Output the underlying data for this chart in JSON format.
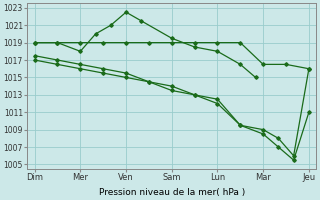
{
  "xlabel": "Pression niveau de la mer( hPa )",
  "ylim": [
    1005,
    1023
  ],
  "yticks": [
    1005,
    1007,
    1009,
    1011,
    1013,
    1015,
    1017,
    1019,
    1021,
    1023
  ],
  "x_labels": [
    "Dim",
    "Mer",
    "Ven",
    "Sam",
    "Lun",
    "Mar",
    "Jeu"
  ],
  "x_positions": [
    0,
    12,
    24,
    36,
    48,
    60,
    72
  ],
  "background_color": "#cce8e8",
  "grid_color": "#99cccc",
  "line_color": "#1a6b1a",
  "series_flat": {
    "x": [
      0,
      6,
      12,
      18,
      24,
      30,
      36,
      42,
      48,
      54,
      60,
      66,
      72
    ],
    "y": [
      1019,
      1019,
      1019,
      1019,
      1019,
      1019,
      1019,
      1019,
      1019,
      1019,
      1016.5,
      1016.5,
      1016
    ]
  },
  "series_peaked": {
    "x": [
      0,
      6,
      12,
      16,
      20,
      24,
      28,
      36,
      42,
      48,
      54,
      58
    ],
    "y": [
      1019,
      1019,
      1018,
      1020,
      1021,
      1022.5,
      1021.5,
      1019.5,
      1018.5,
      1018,
      1016.5,
      1015
    ]
  },
  "series_diag1": {
    "x": [
      0,
      6,
      12,
      18,
      24,
      30,
      36,
      42,
      48,
      54,
      60,
      64,
      68,
      72
    ],
    "y": [
      1017,
      1016.5,
      1016,
      1015.5,
      1015,
      1014.5,
      1013.5,
      1013,
      1012,
      1009.5,
      1008.5,
      1007,
      1005.5,
      1011
    ]
  },
  "series_diag2": {
    "x": [
      0,
      6,
      12,
      18,
      24,
      30,
      36,
      42,
      48,
      54,
      60,
      64,
      68,
      72
    ],
    "y": [
      1017.5,
      1017,
      1016.5,
      1016,
      1015.5,
      1014.5,
      1014,
      1013,
      1012.5,
      1009.5,
      1009,
      1008,
      1006,
      1016
    ]
  }
}
